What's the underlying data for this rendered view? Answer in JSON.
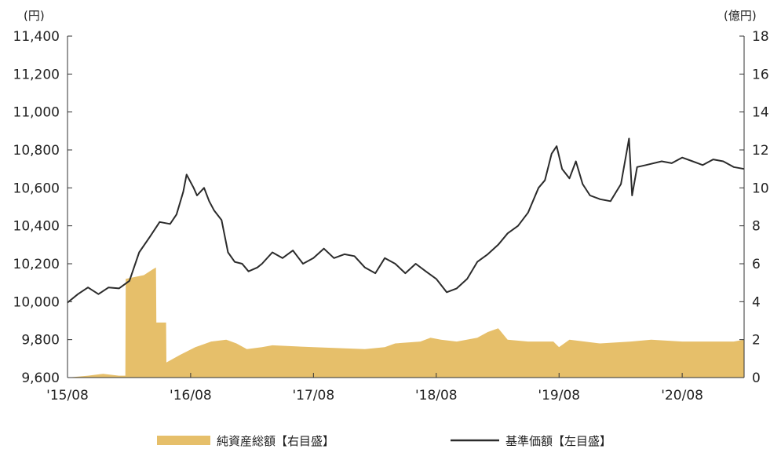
{
  "chart_data": {
    "type": "line",
    "title": "",
    "left_axis": {
      "unit": "(円)",
      "ylim": [
        9600,
        11400
      ],
      "ticks": [
        "11,400",
        "11,200",
        "11,000",
        "10,800",
        "10,600",
        "10,400",
        "10,200",
        "10,000",
        "9,800",
        "9,600"
      ],
      "tick_values": [
        11400,
        11200,
        11000,
        10800,
        10600,
        10400,
        10200,
        10000,
        9800,
        9600
      ]
    },
    "right_axis": {
      "unit": "(億円)",
      "ylim": [
        0,
        18
      ],
      "ticks": [
        "18",
        "16",
        "14",
        "12",
        "10",
        "8",
        "6",
        "4",
        "2",
        "0"
      ],
      "tick_values": [
        18,
        16,
        14,
        12,
        10,
        8,
        6,
        4,
        2,
        0
      ]
    },
    "x_axis": {
      "ticks": [
        "'15/08",
        "'16/08",
        "'17/08",
        "'18/08",
        "'19/08",
        "'20/08"
      ],
      "tick_dates": [
        "2015-08",
        "2016-08",
        "2017-08",
        "2018-08",
        "2019-08",
        "2020-08"
      ],
      "xlim": [
        "2015-08",
        "2021-02"
      ]
    },
    "legend": {
      "position": "bottom",
      "entries": [
        {
          "label": "純資産総額【右目盛】",
          "color": "#E6BF6A",
          "kind": "area"
        },
        {
          "label": "基準価額【左目盛】",
          "color": "#2B2B2B",
          "kind": "line"
        }
      ]
    },
    "series": [
      {
        "name": "純資産総額【右目盛】",
        "axis": "right",
        "type": "area",
        "color": "#E6BF6A",
        "points": [
          [
            "2015-08-01",
            0.0
          ],
          [
            "2015-10-01",
            0.1
          ],
          [
            "2015-11-15",
            0.2
          ],
          [
            "2016-01-01",
            0.1
          ],
          [
            "2016-01-20",
            0.1
          ],
          [
            "2016-01-21",
            5.2
          ],
          [
            "2016-03-15",
            5.4
          ],
          [
            "2016-04-10",
            5.7
          ],
          [
            "2016-04-20",
            5.8
          ],
          [
            "2016-04-21",
            2.9
          ],
          [
            "2016-05-20",
            2.9
          ],
          [
            "2016-05-21",
            0.8
          ],
          [
            "2016-07-01",
            1.2
          ],
          [
            "2016-08-15",
            1.6
          ],
          [
            "2016-10-01",
            1.9
          ],
          [
            "2016-11-15",
            2.0
          ],
          [
            "2016-12-15",
            1.8
          ],
          [
            "2017-01-15",
            1.5
          ],
          [
            "2017-03-01",
            1.6
          ],
          [
            "2017-04-01",
            1.7
          ],
          [
            "2017-08-01",
            1.6
          ],
          [
            "2018-01-01",
            1.5
          ],
          [
            "2018-03-01",
            1.6
          ],
          [
            "2018-04-01",
            1.8
          ],
          [
            "2018-06-15",
            1.9
          ],
          [
            "2018-07-15",
            2.1
          ],
          [
            "2018-08-15",
            2.0
          ],
          [
            "2018-10-01",
            1.9
          ],
          [
            "2018-12-01",
            2.1
          ],
          [
            "2019-01-01",
            2.4
          ],
          [
            "2019-02-01",
            2.6
          ],
          [
            "2019-03-01",
            2.0
          ],
          [
            "2019-05-01",
            1.9
          ],
          [
            "2019-07-15",
            1.9
          ],
          [
            "2019-08-01",
            1.6
          ],
          [
            "2019-09-01",
            2.0
          ],
          [
            "2019-12-01",
            1.8
          ],
          [
            "2020-03-01",
            1.9
          ],
          [
            "2020-05-01",
            2.0
          ],
          [
            "2020-08-01",
            1.9
          ],
          [
            "2021-01-01",
            1.9
          ],
          [
            "2021-02-01",
            2.0
          ]
        ]
      },
      {
        "name": "基準価額【左目盛】",
        "axis": "left",
        "type": "line",
        "color": "#2B2B2B",
        "points": [
          [
            "2015-08-01",
            9995
          ],
          [
            "2015-09-01",
            10040
          ],
          [
            "2015-10-01",
            10075
          ],
          [
            "2015-11-01",
            10040
          ],
          [
            "2015-12-01",
            10075
          ],
          [
            "2016-01-01",
            10070
          ],
          [
            "2016-02-01",
            10110
          ],
          [
            "2016-03-01",
            10260
          ],
          [
            "2016-04-01",
            10340
          ],
          [
            "2016-05-01",
            10420
          ],
          [
            "2016-06-01",
            10410
          ],
          [
            "2016-06-20",
            10460
          ],
          [
            "2016-07-10",
            10580
          ],
          [
            "2016-07-20",
            10670
          ],
          [
            "2016-08-10",
            10600
          ],
          [
            "2016-08-20",
            10560
          ],
          [
            "2016-09-10",
            10600
          ],
          [
            "2016-09-25",
            10530
          ],
          [
            "2016-10-10",
            10480
          ],
          [
            "2016-11-01",
            10430
          ],
          [
            "2016-11-20",
            10260
          ],
          [
            "2016-12-10",
            10210
          ],
          [
            "2017-01-01",
            10200
          ],
          [
            "2017-01-20",
            10160
          ],
          [
            "2017-02-15",
            10180
          ],
          [
            "2017-03-01",
            10200
          ],
          [
            "2017-04-01",
            10260
          ],
          [
            "2017-05-01",
            10230
          ],
          [
            "2017-06-01",
            10270
          ],
          [
            "2017-07-01",
            10200
          ],
          [
            "2017-08-01",
            10230
          ],
          [
            "2017-09-01",
            10280
          ],
          [
            "2017-10-01",
            10230
          ],
          [
            "2017-11-01",
            10250
          ],
          [
            "2017-12-01",
            10240
          ],
          [
            "2018-01-01",
            10180
          ],
          [
            "2018-02-01",
            10150
          ],
          [
            "2018-03-01",
            10230
          ],
          [
            "2018-04-01",
            10200
          ],
          [
            "2018-05-01",
            10150
          ],
          [
            "2018-06-01",
            10200
          ],
          [
            "2018-07-01",
            10160
          ],
          [
            "2018-08-01",
            10120
          ],
          [
            "2018-09-01",
            10050
          ],
          [
            "2018-10-01",
            10070
          ],
          [
            "2018-11-01",
            10120
          ],
          [
            "2018-12-01",
            10210
          ],
          [
            "2019-01-01",
            10250
          ],
          [
            "2019-02-01",
            10300
          ],
          [
            "2019-03-01",
            10360
          ],
          [
            "2019-04-01",
            10400
          ],
          [
            "2019-05-01",
            10470
          ],
          [
            "2019-06-01",
            10600
          ],
          [
            "2019-06-20",
            10640
          ],
          [
            "2019-07-10",
            10780
          ],
          [
            "2019-07-25",
            10820
          ],
          [
            "2019-08-10",
            10700
          ],
          [
            "2019-09-01",
            10650
          ],
          [
            "2019-09-20",
            10740
          ],
          [
            "2019-10-10",
            10620
          ],
          [
            "2019-11-01",
            10560
          ],
          [
            "2019-12-01",
            10540
          ],
          [
            "2020-01-01",
            10530
          ],
          [
            "2020-02-01",
            10620
          ],
          [
            "2020-02-25",
            10860
          ],
          [
            "2020-03-05",
            10560
          ],
          [
            "2020-03-20",
            10710
          ],
          [
            "2020-04-15",
            10720
          ],
          [
            "2020-06-01",
            10740
          ],
          [
            "2020-07-01",
            10730
          ],
          [
            "2020-08-01",
            10760
          ],
          [
            "2020-09-01",
            10740
          ],
          [
            "2020-10-01",
            10720
          ],
          [
            "2020-11-01",
            10750
          ],
          [
            "2020-12-01",
            10740
          ],
          [
            "2021-01-01",
            10710
          ],
          [
            "2021-02-01",
            10700
          ]
        ]
      }
    ]
  }
}
